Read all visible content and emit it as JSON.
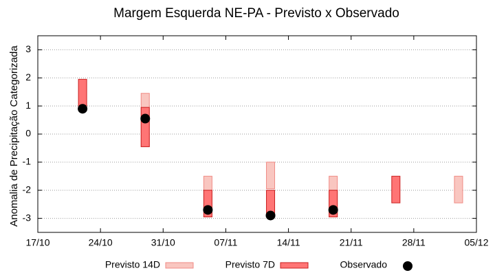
{
  "chart_data": {
    "type": "range",
    "title": "Margem Esquerda NE-PA - Previsto x Observado",
    "ylabel": "Anomalia de Precipitação Categorizada",
    "x": [
      "22/10",
      "29/10",
      "05/11",
      "12/11",
      "19/11",
      "26/11",
      "03/12"
    ],
    "xlim": [
      "17/10",
      "05/12"
    ],
    "xticks": [
      "17/10",
      "24/10",
      "31/10",
      "07/11",
      "14/11",
      "21/11",
      "28/11",
      "05/12"
    ],
    "ylim": [
      -3.5,
      3.5
    ],
    "yticks": [
      -3,
      -2,
      -1,
      0,
      1,
      2,
      3
    ],
    "grid": true,
    "series": [
      {
        "name": "Previsto 14D",
        "type": "range",
        "color": "#f9c6c0",
        "edgecolor": "#f08a84",
        "values": [
          null,
          [
            -0.45,
            1.45
          ],
          [
            -2.95,
            -1.5
          ],
          [
            -1.95,
            -1
          ],
          [
            -2.95,
            -1.5
          ],
          null,
          [
            -2.45,
            -1.5
          ]
        ]
      },
      {
        "name": "Previsto 7D",
        "type": "range",
        "color": "#ff7575",
        "edgecolor": "#c81e1e",
        "values": [
          [
            1,
            1.95
          ],
          [
            -0.45,
            0.95
          ],
          [
            -2.95,
            -2
          ],
          [
            -2.95,
            -2
          ],
          [
            -2.95,
            -2
          ],
          [
            -2.45,
            -1.5
          ],
          null
        ]
      },
      {
        "name": "Observado",
        "type": "point",
        "color": "#000000",
        "values": [
          0.9,
          0.55,
          -2.7,
          -2.9,
          -2.7,
          null,
          null
        ]
      }
    ]
  }
}
